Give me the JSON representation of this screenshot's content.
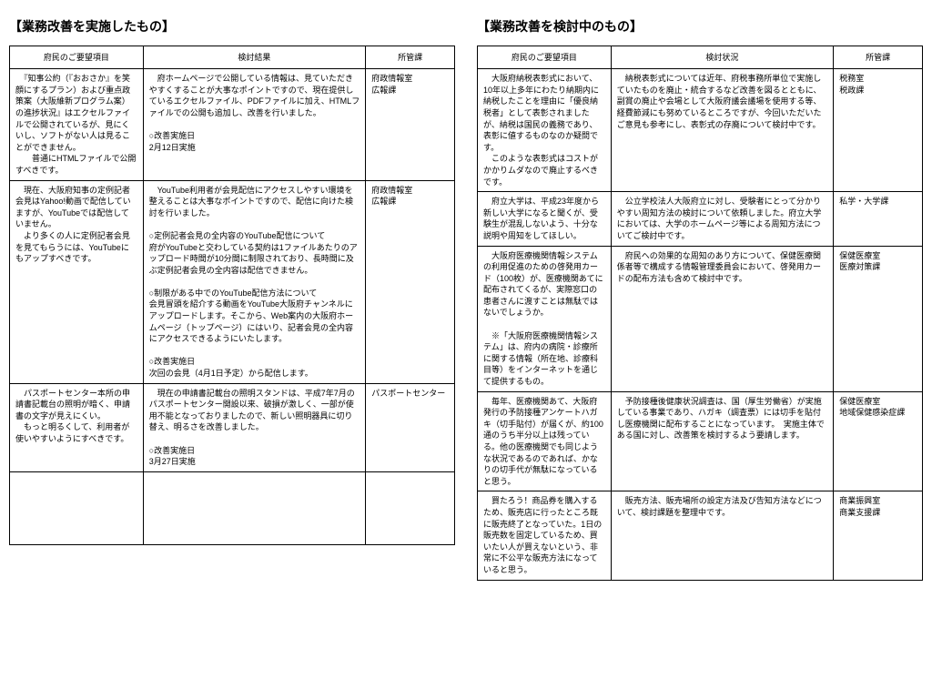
{
  "left": {
    "title": "【業務改善を実施したもの】",
    "headers": [
      "府民のご要望項目",
      "検討結果",
      "所管課"
    ],
    "rows": [
      {
        "request": "　『知事公約（『おおさか』を笑顔にするプラン）および重点政策案（大阪維新プログラム案）の進捗状況』はエクセルファイルで公開されているが、見にくいし、ソフトがない人は見ることができません。\n　　普通にHTMLファイルで公開すべきです。",
        "result": "　府ホームページで公開している情報は、見ていただきやすくすることが大事なポイントですので、現在提供しているエクセルファイル、PDFファイルに加え、HTMLファイルでの公開も追加し、改善を行いました。\n\n○改善実施日\n2月12日実施",
        "dept": "府政情報室\n広報課"
      },
      {
        "request": "　現在、大阪府知事の定例記者会見はYahoo!動画で配信していますが、YouTubeでは配信していません。\n　より多くの人に定例記者会見を見てもらうには、YouTubeにもアップすべきです。",
        "result": "　YouTube利用者が会見配信にアクセスしやすい環境を整えることは大事なポイントですので、配信に向けた検討を行いました。\n\n○定例記者会見の全内容のYouTube配信について\n府がYouTubeと交わしている契約は1ファイルあたりのアップロード時間が10分間に制限されており、長時間に及ぶ定例記者会見の全内容は配信できません。\n\n○制限がある中でのYouTube配信方法について\n会見冒頭を紹介する動画をYouTube大阪府チャンネルにアップロードします。そこから、Web案内の大阪府ホームページ（トップページ）にはいり、記者会見の全内容にアクセスできるようにいたします。\n\n○改善実施日\n次回の会見（4月1日予定）から配信します。",
        "dept": "府政情報室\n広報課"
      },
      {
        "request": "　パスポートセンター本所の申請書記載台の照明が暗く、申請書の文字が見えにくい。\n　もっと明るくして、利用者が使いやすいようにすべきです。",
        "result": "　現在の申請書記載台の照明スタンドは、平成7年7月のパスポートセンター開設以来、破損が激しく、一部が使用不能となっておりましたので、新しい照明器具に切り替え、明るさを改善しました。\n\n○改善実施日\n3月27日実施",
        "dept": "パスポートセンター"
      }
    ]
  },
  "right": {
    "title": "【業務改善を検討中のもの】",
    "headers": [
      "府民のご要望項目",
      "検討状況",
      "所管課"
    ],
    "rows": [
      {
        "request": "　大阪府納税表彰式において、10年以上多年にわたり納期内に納税したことを理由に「優良納税者」として表彰されましたが、納税は国民の義務であり、表彰に値するものなのか疑問です。\n　このような表彰式はコストがかかりムダなので廃止するべきです。",
        "result": "　納税表彰式については近年、府税事務所単位で実施していたものを廃止・統合するなど改善を図るとともに、副賞の廃止や会場として大阪府議会議場を使用する等、経費節減にも努めているところですが、今回いただいたご意見も参考にし、表彰式の存廃について検討中です。",
        "dept": "税務室\n税政課"
      },
      {
        "request": "　府立大学は、平成23年度から新しい大学になると聞くが、受験生が混乱しないよう、十分な説明や周知をしてほしい。",
        "result": "　公立学校法人大阪府立に対し、受験者にとって分かりやすい周知方法の検討について依頼しました。府立大学においては、大学のホームページ等による周知方法についてご検討中です。",
        "dept": "私学・大学課"
      },
      {
        "request": "　大阪府医療機関情報システムの利用促進のための啓発用カード（100枚）が、医療機関あてに配布されてくるが、実際窓口の患者さんに渡すことは無駄ではないでしょうか。\n\n　※「大阪府医療機関情報システム」は、府内の病院・診療所に関する情報（所在地、診療科目等）をインターネットを通じて提供するもの。",
        "result": "　府民への効果的な周知のあり方について、保健医療関係者等で構成する情報管理委員会において、啓発用カードの配布方法も含めて検討中です。",
        "dept": "保健医療室\n医療対策課"
      },
      {
        "request": "　毎年、医療機関あて、大阪府発行の予防接種アンケートハガキ（切手貼付）が届くが、約100通のうち半分以上は残っている。他の医療機関でも同じような状況であるのであれば、かなりの切手代が無駄になっていると思う。",
        "result": "　予防接種後健康状況調査は、国（厚生労働省）が実施している事業であり、ハガキ（調査票）には切手を貼付し医療機関に配布することになっています。　実施主体である国に対し、改善策を検討するよう要請します。",
        "dept": "保健医療室\n地域保健感染症課"
      },
      {
        "request": "　買たろう！商品券を購入するため、販売店に行ったところ既に販売終了となっていた。1日の販売数を固定しているため、買いたい人が買えないという、非常に不公平な販売方法になっていると思う。",
        "result": "　販売方法、販売場所の設定方法及び告知方法などについて、検討課題を整理中です。",
        "dept": "商業振興室\n商業支援課"
      }
    ]
  }
}
